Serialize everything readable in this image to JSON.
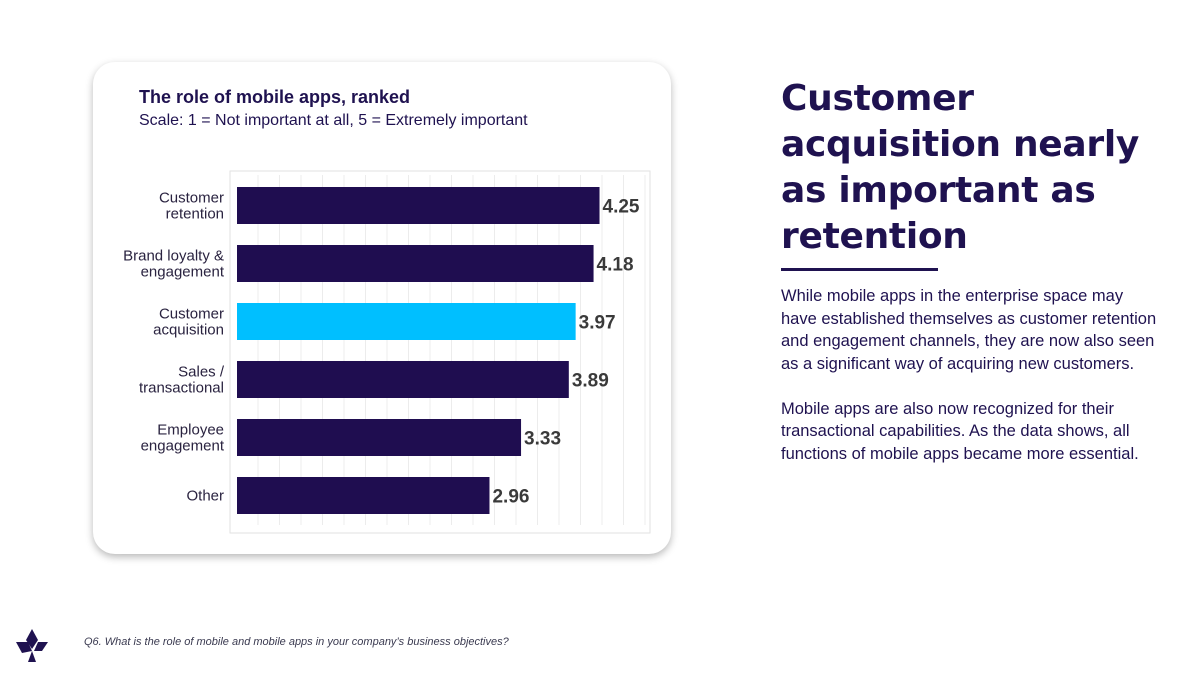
{
  "chart_data": {
    "type": "bar",
    "orientation": "horizontal",
    "title": "The role of mobile apps, ranked",
    "subtitle": "Scale: 1 = Not important at all, 5 = Extremely important",
    "categories": [
      [
        "Customer",
        "retention"
      ],
      [
        "Brand loyalty &",
        "engagement"
      ],
      [
        "Customer",
        "acquisition"
      ],
      [
        "Sales /",
        "transactional"
      ],
      [
        "Employee",
        "engagement"
      ],
      [
        "Other"
      ]
    ],
    "values": [
      4.25,
      4.18,
      3.97,
      3.89,
      3.33,
      2.96
    ],
    "value_labels": [
      "4.25",
      "4.18",
      "3.97",
      "3.89",
      "3.33",
      "2.96"
    ],
    "highlight_index": 2,
    "colors": {
      "bar": "#1f0d50",
      "highlight": "#00bfff",
      "label": "#3a3a3a"
    },
    "xlim": [
      0,
      5
    ],
    "grid": true,
    "legend": "none"
  },
  "headline": "Customer acquisition nearly as important as retention",
  "paragraphs": [
    "While mobile apps in the enterprise space may have established themselves as customer retention and engagement channels, they are now also seen as a significant way of acquiring new customers.",
    "Mobile apps are also now recognized for their transactional capabilities. As the data shows, all functions of mobile apps became more essential."
  ],
  "footnote": "Q6. What is the role of mobile and mobile apps in your company’s business objectives?",
  "colors": {
    "brand_dark": "#1f1250",
    "accent": "#00bfff"
  },
  "logo": {
    "icon": "brand-logo-icon"
  }
}
